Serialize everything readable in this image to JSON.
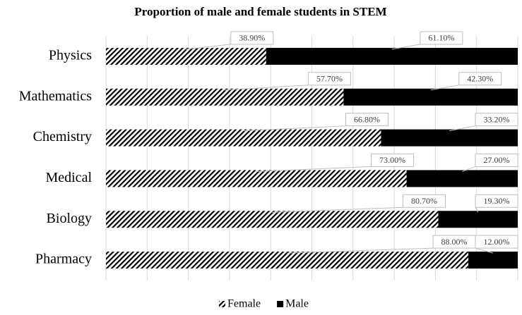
{
  "chart_data": {
    "type": "stacked_barh",
    "title": "Proportion of male and female students in STEM",
    "categories": [
      "Physics",
      "Mathematics",
      "Chemistry",
      "Medical",
      "Biology",
      "Pharmacy"
    ],
    "series": [
      {
        "name": "Female",
        "color": "#000000",
        "pattern": "hatch",
        "values": [
          38.9,
          57.7,
          66.8,
          73.0,
          80.7,
          88.0
        ],
        "value_labels": [
          "38.90%",
          "57.70%",
          "66.80%",
          "73.00%",
          "80.70%",
          "88.00%"
        ]
      },
      {
        "name": "Male",
        "color": "#000000",
        "values": [
          61.1,
          42.3,
          33.2,
          27.0,
          19.3,
          12.0
        ],
        "value_labels": [
          "61.10%",
          "42.30%",
          "33.20%",
          "27.00%",
          "19.30%",
          "12.00%"
        ]
      }
    ],
    "xlim": [
      0,
      100
    ],
    "xticks": [
      0,
      10,
      20,
      30,
      40,
      50,
      60,
      70,
      80,
      90,
      100
    ],
    "grid": true,
    "legend": "bottom"
  }
}
